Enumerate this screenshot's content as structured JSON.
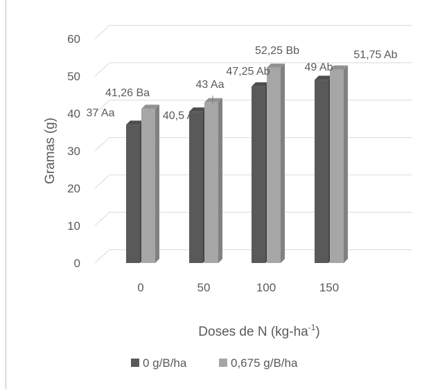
{
  "chart_data": {
    "type": "bar",
    "title": "",
    "xlabel": "Doses de N (kg-ha",
    "xlabel_superscript": "-1",
    "xlabel_suffix": ")",
    "ylabel": "Gramas (g)",
    "categories": [
      "0",
      "50",
      "100",
      "150"
    ],
    "ylim": [
      0,
      60
    ],
    "yticks": [
      "0",
      "10",
      "20",
      "30",
      "40",
      "50",
      "60"
    ],
    "grid": true,
    "legend_position": "bottom",
    "three_d": true,
    "series": [
      {
        "name": "0 g/B/ha",
        "color": "#595959",
        "values": [
          37,
          40.5,
          47.25,
          49
        ],
        "labels": [
          "37 Aa",
          "40,5 Aa",
          "47,25 Ab",
          "49 Ab"
        ]
      },
      {
        "name": "0,675 g/B/ha",
        "color": "#a6a6a6",
        "values": [
          41.26,
          43,
          52.25,
          51.75
        ],
        "labels": [
          "41,26 Ba",
          "43 Aa",
          "52,25 Bb",
          "51,75 Ab"
        ]
      }
    ]
  }
}
